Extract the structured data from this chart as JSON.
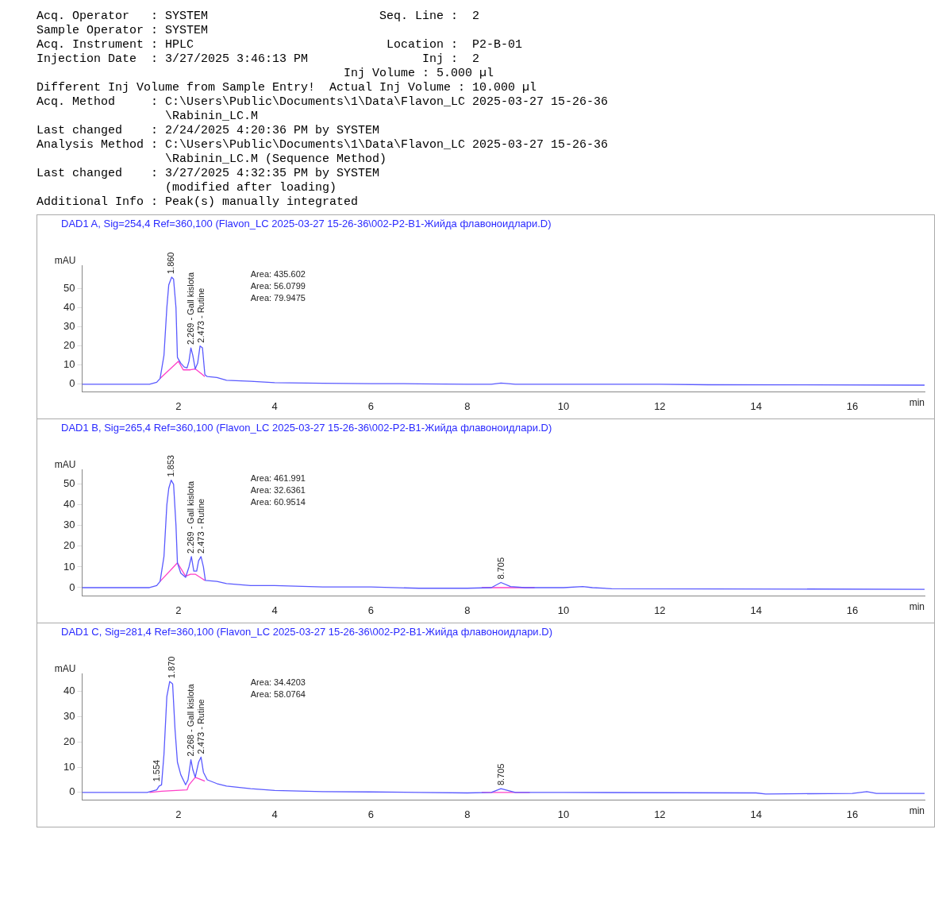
{
  "chart_data": [
    {
      "type": "other",
      "annotations": [
        "Acq. Operator   : SYSTEM                        Seq. Line :  2",
        "Sample Operator : SYSTEM",
        "Acq. Instrument : HPLC                           Location :  P2-B-01",
        "Injection Date  : 3/27/2025 3:46:13 PM                Inj :  2",
        "                                           Inj Volume : 5.000 µl",
        "Different Inj Volume from Sample Entry!  Actual Inj Volume : 10.000 µl",
        "Acq. Method     : C:\\Users\\Public\\Documents\\1\\Data\\Flavon_LC 2025-03-27 15-26-36",
        "                  \\Rabinin_LC.M",
        "Last changed    : 2/24/2025 4:20:36 PM by SYSTEM",
        "Analysis Method : C:\\Users\\Public\\Documents\\1\\Data\\Flavon_LC 2025-03-27 15-26-36",
        "                  \\Rabinin_LC.M (Sequence Method)",
        "Last changed    : 3/27/2025 4:32:35 PM by SYSTEM",
        "                  (modified after loading)",
        "Additional Info : Peak(s) manually integrated"
      ]
    },
    {
      "type": "line",
      "title": "DAD1 A, Sig=254,4 Ref=360,100 (Flavon_LC 2025-03-27 15-26-36\\002-P2-B1-Жийда флавоноидлари.D)",
      "xlabel": "min",
      "ylabel": "mAU",
      "xlim": [
        0,
        17.5
      ],
      "xticks": [
        2,
        4,
        6,
        8,
        10,
        12,
        14,
        16
      ],
      "ylim": [
        -4,
        62
      ],
      "yticks": [
        0,
        10,
        20,
        30,
        40,
        50
      ],
      "grid": false,
      "legend": false,
      "marker": "none",
      "series": [
        {
          "color": "#5a5aff",
          "x": [
            0,
            1.4,
            1.55,
            1.62,
            1.7,
            1.76,
            1.8,
            1.86,
            1.9,
            1.95,
            1.98,
            2.05,
            2.12,
            2.18,
            2.22,
            2.26,
            2.3,
            2.35,
            2.4,
            2.45,
            2.5,
            2.55,
            2.6,
            2.8,
            3,
            3.5,
            4,
            5,
            6,
            7,
            8,
            8.5,
            8.7,
            9,
            10,
            12,
            13,
            17.5
          ],
          "values": [
            0,
            0,
            1,
            3,
            15,
            40,
            52,
            56,
            55,
            40,
            14,
            11,
            9,
            8.5,
            12,
            19,
            15,
            8,
            11,
            20,
            19,
            5,
            4,
            3.5,
            2,
            1.5,
            0.8,
            0.5,
            0.3,
            0.2,
            0,
            0,
            0.6,
            0,
            0,
            0,
            -0.3,
            -0.5
          ]
        },
        {
          "color": "#ff40c8",
          "x": [
            1.62,
            2,
            2.1,
            2.25,
            2.35,
            2.55
          ],
          "values": [
            3,
            12,
            7.5,
            7.5,
            8,
            4
          ]
        }
      ],
      "annotations": [
        {
          "text": "1.860",
          "x": 1.86,
          "y": 56
        },
        {
          "text": "2.269 - Gall kislota",
          "x": 2.269,
          "y": 19
        },
        {
          "text": "2.473 - Rutine",
          "x": 2.473,
          "y": 20
        },
        "Area: 435.602",
        "Area: 56.0799",
        "Area: 79.9475"
      ]
    },
    {
      "type": "line",
      "title": "DAD1 B, Sig=265,4 Ref=360,100 (Flavon_LC 2025-03-27 15-26-36\\002-P2-B1-Жийда флавоноидлари.D)",
      "xlabel": "min",
      "ylabel": "mAU",
      "xlim": [
        0,
        17.5
      ],
      "xticks": [
        2,
        4,
        6,
        8,
        10,
        12,
        14,
        16
      ],
      "ylim": [
        -4,
        57
      ],
      "yticks": [
        0,
        10,
        20,
        30,
        40,
        50
      ],
      "grid": false,
      "legend": false,
      "marker": "none",
      "series": [
        {
          "color": "#5a5aff",
          "x": [
            0,
            1.4,
            1.55,
            1.62,
            1.7,
            1.76,
            1.8,
            1.85,
            1.9,
            1.95,
            1.98,
            2.05,
            2.15,
            2.22,
            2.27,
            2.32,
            2.38,
            2.42,
            2.47,
            2.52,
            2.56,
            2.8,
            3,
            3.5,
            4,
            5,
            6,
            7,
            8,
            8.5,
            8.7,
            8.9,
            9.2,
            10,
            10.4,
            10.6,
            11,
            17.5
          ],
          "values": [
            0,
            0,
            1,
            3,
            15,
            40,
            48,
            52,
            50,
            30,
            12,
            7,
            5,
            10,
            15,
            8,
            8,
            13,
            15,
            10,
            3.5,
            3,
            2,
            1,
            1,
            0.3,
            0.3,
            -0.3,
            -0.3,
            0,
            2.5,
            0.5,
            0,
            0,
            0.5,
            0,
            -0.5,
            -0.8
          ]
        },
        {
          "color": "#ff40c8",
          "x": [
            1.62,
            1.98,
            2.15,
            2.25,
            2.35,
            2.55,
            null,
            8.3,
            9.4
          ],
          "values": [
            3,
            12,
            5.5,
            6.5,
            6.5,
            3.5,
            null,
            0,
            0
          ]
        }
      ],
      "annotations": [
        {
          "text": "1.853",
          "x": 1.853,
          "y": 52
        },
        {
          "text": "2.269 - Gall kislota",
          "x": 2.269,
          "y": 15
        },
        {
          "text": "2.473 - Rutine",
          "x": 2.473,
          "y": 15
        },
        {
          "text": "8.705",
          "x": 8.705,
          "y": 2.5
        },
        "Area: 461.991",
        "Area: 32.6361",
        "Area: 60.9514"
      ]
    },
    {
      "type": "line",
      "title": "DAD1 C, Sig=281,4 Ref=360,100 (Flavon_LC 2025-03-27 15-26-36\\002-P2-B1-Жийда флавоноидлари.D)",
      "xlabel": "min",
      "ylabel": "mAU",
      "xlim": [
        0,
        17.5
      ],
      "xticks": [
        2,
        4,
        6,
        8,
        10,
        12,
        14,
        16
      ],
      "ylim": [
        -3,
        47
      ],
      "yticks": [
        0,
        10,
        20,
        30,
        40
      ],
      "grid": false,
      "legend": false,
      "marker": "none",
      "series": [
        {
          "color": "#5a5aff",
          "x": [
            0,
            1.35,
            1.55,
            1.6,
            1.65,
            1.7,
            1.76,
            1.82,
            1.88,
            1.93,
            1.98,
            2.05,
            2.15,
            2.2,
            2.26,
            2.3,
            2.35,
            2.42,
            2.47,
            2.52,
            2.6,
            2.8,
            3,
            3.5,
            4,
            5,
            6,
            7,
            8,
            8.5,
            8.7,
            9,
            10,
            14,
            14.2,
            16,
            16.3,
            16.5,
            17.5
          ],
          "values": [
            0,
            0,
            1,
            2.5,
            3,
            15,
            38,
            44,
            43,
            25,
            12,
            7,
            3,
            5,
            13,
            9,
            6,
            12,
            14,
            8,
            5,
            3.5,
            2.5,
            1.5,
            0.8,
            0.3,
            0.2,
            0,
            -0.2,
            0,
            1.5,
            0,
            0,
            -0.2,
            -0.6,
            -0.4,
            0.3,
            -0.4,
            -0.4
          ]
        },
        {
          "color": "#ff40c8",
          "x": [
            1.4,
            1.65,
            2.18,
            2.22,
            2.35,
            2.55,
            null,
            8.3,
            9.3
          ],
          "values": [
            0,
            0.5,
            1,
            3,
            6,
            4.5,
            null,
            0,
            0
          ]
        }
      ],
      "annotations": [
        {
          "text": "1.554",
          "x": 1.554,
          "y": 3
        },
        {
          "text": "1.870",
          "x": 1.87,
          "y": 44
        },
        {
          "text": "2.268 - Gall kislota",
          "x": 2.268,
          "y": 13
        },
        {
          "text": "2.473 - Rutine",
          "x": 2.473,
          "y": 14
        },
        {
          "text": "8.705",
          "x": 8.705,
          "y": 1.5
        },
        "Area: 34.4203",
        "Area: 58.0764"
      ]
    }
  ]
}
